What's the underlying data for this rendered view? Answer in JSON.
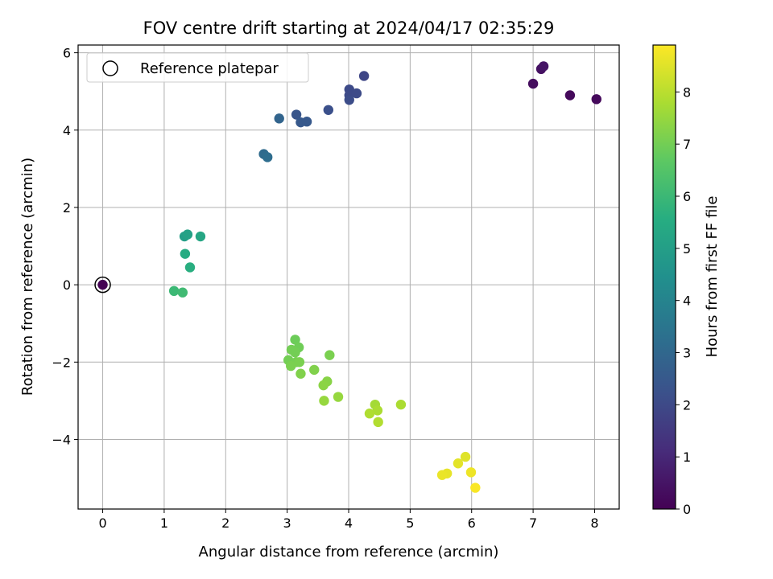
{
  "chart_data": {
    "type": "scatter",
    "title": "FOV centre drift starting at 2024/04/17 02:35:29",
    "xlabel": "Angular distance from reference (arcmin)",
    "ylabel": "Rotation from reference (arcmin)",
    "xlim": [
      -0.4,
      8.4
    ],
    "ylim": [
      -5.8,
      6.2
    ],
    "xticks": [
      0,
      1,
      2,
      3,
      4,
      5,
      6,
      7,
      8
    ],
    "yticks": [
      -4,
      -2,
      0,
      2,
      4,
      6
    ],
    "grid": true,
    "legend": {
      "placement": "top-left",
      "entries": [
        {
          "label": "Reference platepar",
          "marker": "open-circle"
        }
      ]
    },
    "colorbar": {
      "label": "Hours from first FF file",
      "colormap": "viridis",
      "range": [
        0,
        8.9
      ],
      "ticks": [
        0,
        1,
        2,
        3,
        4,
        5,
        6,
        7,
        8
      ]
    },
    "reference_point": {
      "x": 0,
      "y": 0,
      "hours": 0
    },
    "points": [
      {
        "x": 0.0,
        "y": 0.0,
        "hours": 0.0
      },
      {
        "x": 7.0,
        "y": 5.2,
        "hours": 0.3
      },
      {
        "x": 7.13,
        "y": 5.58,
        "hours": 0.4
      },
      {
        "x": 7.17,
        "y": 5.65,
        "hours": 0.5
      },
      {
        "x": 7.6,
        "y": 4.9,
        "hours": 0.2
      },
      {
        "x": 8.03,
        "y": 4.8,
        "hours": 0.2
      },
      {
        "x": 4.25,
        "y": 5.4,
        "hours": 1.9
      },
      {
        "x": 4.01,
        "y": 5.05,
        "hours": 2.0
      },
      {
        "x": 4.01,
        "y": 4.9,
        "hours": 2.0
      },
      {
        "x": 4.13,
        "y": 4.95,
        "hours": 2.05
      },
      {
        "x": 4.01,
        "y": 4.78,
        "hours": 2.1
      },
      {
        "x": 3.67,
        "y": 4.52,
        "hours": 2.2
      },
      {
        "x": 3.15,
        "y": 4.4,
        "hours": 2.4
      },
      {
        "x": 3.22,
        "y": 4.2,
        "hours": 2.5
      },
      {
        "x": 3.32,
        "y": 4.22,
        "hours": 2.5
      },
      {
        "x": 2.87,
        "y": 4.3,
        "hours": 2.9
      },
      {
        "x": 2.62,
        "y": 3.38,
        "hours": 3.1
      },
      {
        "x": 2.68,
        "y": 3.3,
        "hours": 3.2
      },
      {
        "x": 1.33,
        "y": 1.25,
        "hours": 5.0
      },
      {
        "x": 1.38,
        "y": 1.3,
        "hours": 5.1
      },
      {
        "x": 1.59,
        "y": 1.25,
        "hours": 5.3
      },
      {
        "x": 1.34,
        "y": 0.8,
        "hours": 5.5
      },
      {
        "x": 1.42,
        "y": 0.45,
        "hours": 5.6
      },
      {
        "x": 1.16,
        "y": -0.16,
        "hours": 6.0
      },
      {
        "x": 1.3,
        "y": -0.2,
        "hours": 6.1
      },
      {
        "x": 3.13,
        "y": -1.42,
        "hours": 6.9
      },
      {
        "x": 3.19,
        "y": -1.62,
        "hours": 6.95
      },
      {
        "x": 3.07,
        "y": -1.68,
        "hours": 7.0
      },
      {
        "x": 3.13,
        "y": -1.75,
        "hours": 7.0
      },
      {
        "x": 3.69,
        "y": -1.82,
        "hours": 7.1
      },
      {
        "x": 3.02,
        "y": -1.95,
        "hours": 7.0
      },
      {
        "x": 3.15,
        "y": -2.0,
        "hours": 7.05
      },
      {
        "x": 3.2,
        "y": -2.0,
        "hours": 7.1
      },
      {
        "x": 3.06,
        "y": -2.1,
        "hours": 7.1
      },
      {
        "x": 3.44,
        "y": -2.2,
        "hours": 7.2
      },
      {
        "x": 3.22,
        "y": -2.3,
        "hours": 7.2
      },
      {
        "x": 3.65,
        "y": -2.5,
        "hours": 7.3
      },
      {
        "x": 3.59,
        "y": -2.6,
        "hours": 7.35
      },
      {
        "x": 3.83,
        "y": -2.9,
        "hours": 7.5
      },
      {
        "x": 3.6,
        "y": -3.0,
        "hours": 7.5
      },
      {
        "x": 4.43,
        "y": -3.1,
        "hours": 7.7
      },
      {
        "x": 4.85,
        "y": -3.1,
        "hours": 7.8
      },
      {
        "x": 4.47,
        "y": -3.25,
        "hours": 7.8
      },
      {
        "x": 4.34,
        "y": -3.33,
        "hours": 7.85
      },
      {
        "x": 4.48,
        "y": -3.55,
        "hours": 7.9
      },
      {
        "x": 5.9,
        "y": -4.45,
        "hours": 8.5
      },
      {
        "x": 5.78,
        "y": -4.62,
        "hours": 8.55
      },
      {
        "x": 5.6,
        "y": -4.88,
        "hours": 8.6
      },
      {
        "x": 5.52,
        "y": -4.92,
        "hours": 8.65
      },
      {
        "x": 5.99,
        "y": -4.85,
        "hours": 8.7
      },
      {
        "x": 6.06,
        "y": -5.25,
        "hours": 8.85
      }
    ]
  }
}
